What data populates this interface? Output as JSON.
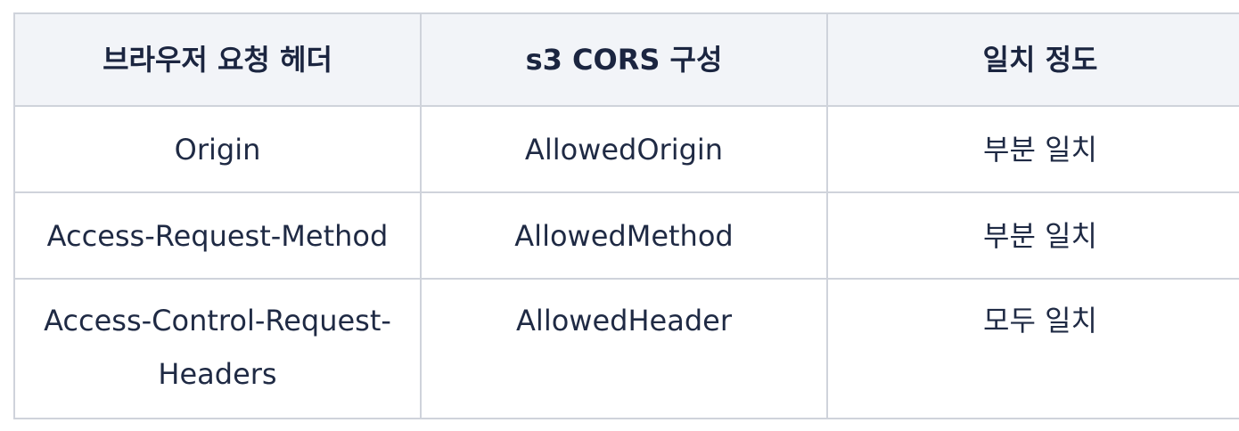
{
  "table": {
    "headers": [
      "브라우저 요청 헤더",
      "s3 CORS 구성",
      "일치 정도"
    ],
    "rows": [
      [
        "Origin",
        "AllowedOrigin",
        "부분 일치"
      ],
      [
        "Access-Request-Method",
        "AllowedMethod",
        "부분 일치"
      ],
      [
        "Access-Control-Request-Headers",
        "AllowedHeader",
        "모두 일치"
      ]
    ]
  }
}
